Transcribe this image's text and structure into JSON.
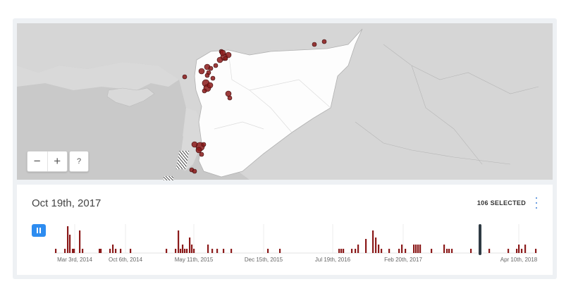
{
  "map": {
    "zoom_out_label": "−",
    "zoom_in_label": "+",
    "help_label": "?",
    "event_color": "#8b1a1a",
    "land_color": "#ffffff",
    "water_color": "#c9c9c9"
  },
  "timeline": {
    "current_date": "Oct 19th, 2017",
    "selected_count": "106 SELECTED",
    "play_state": "paused",
    "accent_color": "#2d8cf0",
    "bar_color": "#8b1a1a",
    "tick_labels": [
      "Mar 3rd, 2014",
      "Oct 6th, 2014",
      "May 11th, 2015",
      "Dec 15th, 2015",
      "Jul 19th, 2016",
      "Feb 20th, 2017",
      "Apr 10th, 2018"
    ]
  }
}
